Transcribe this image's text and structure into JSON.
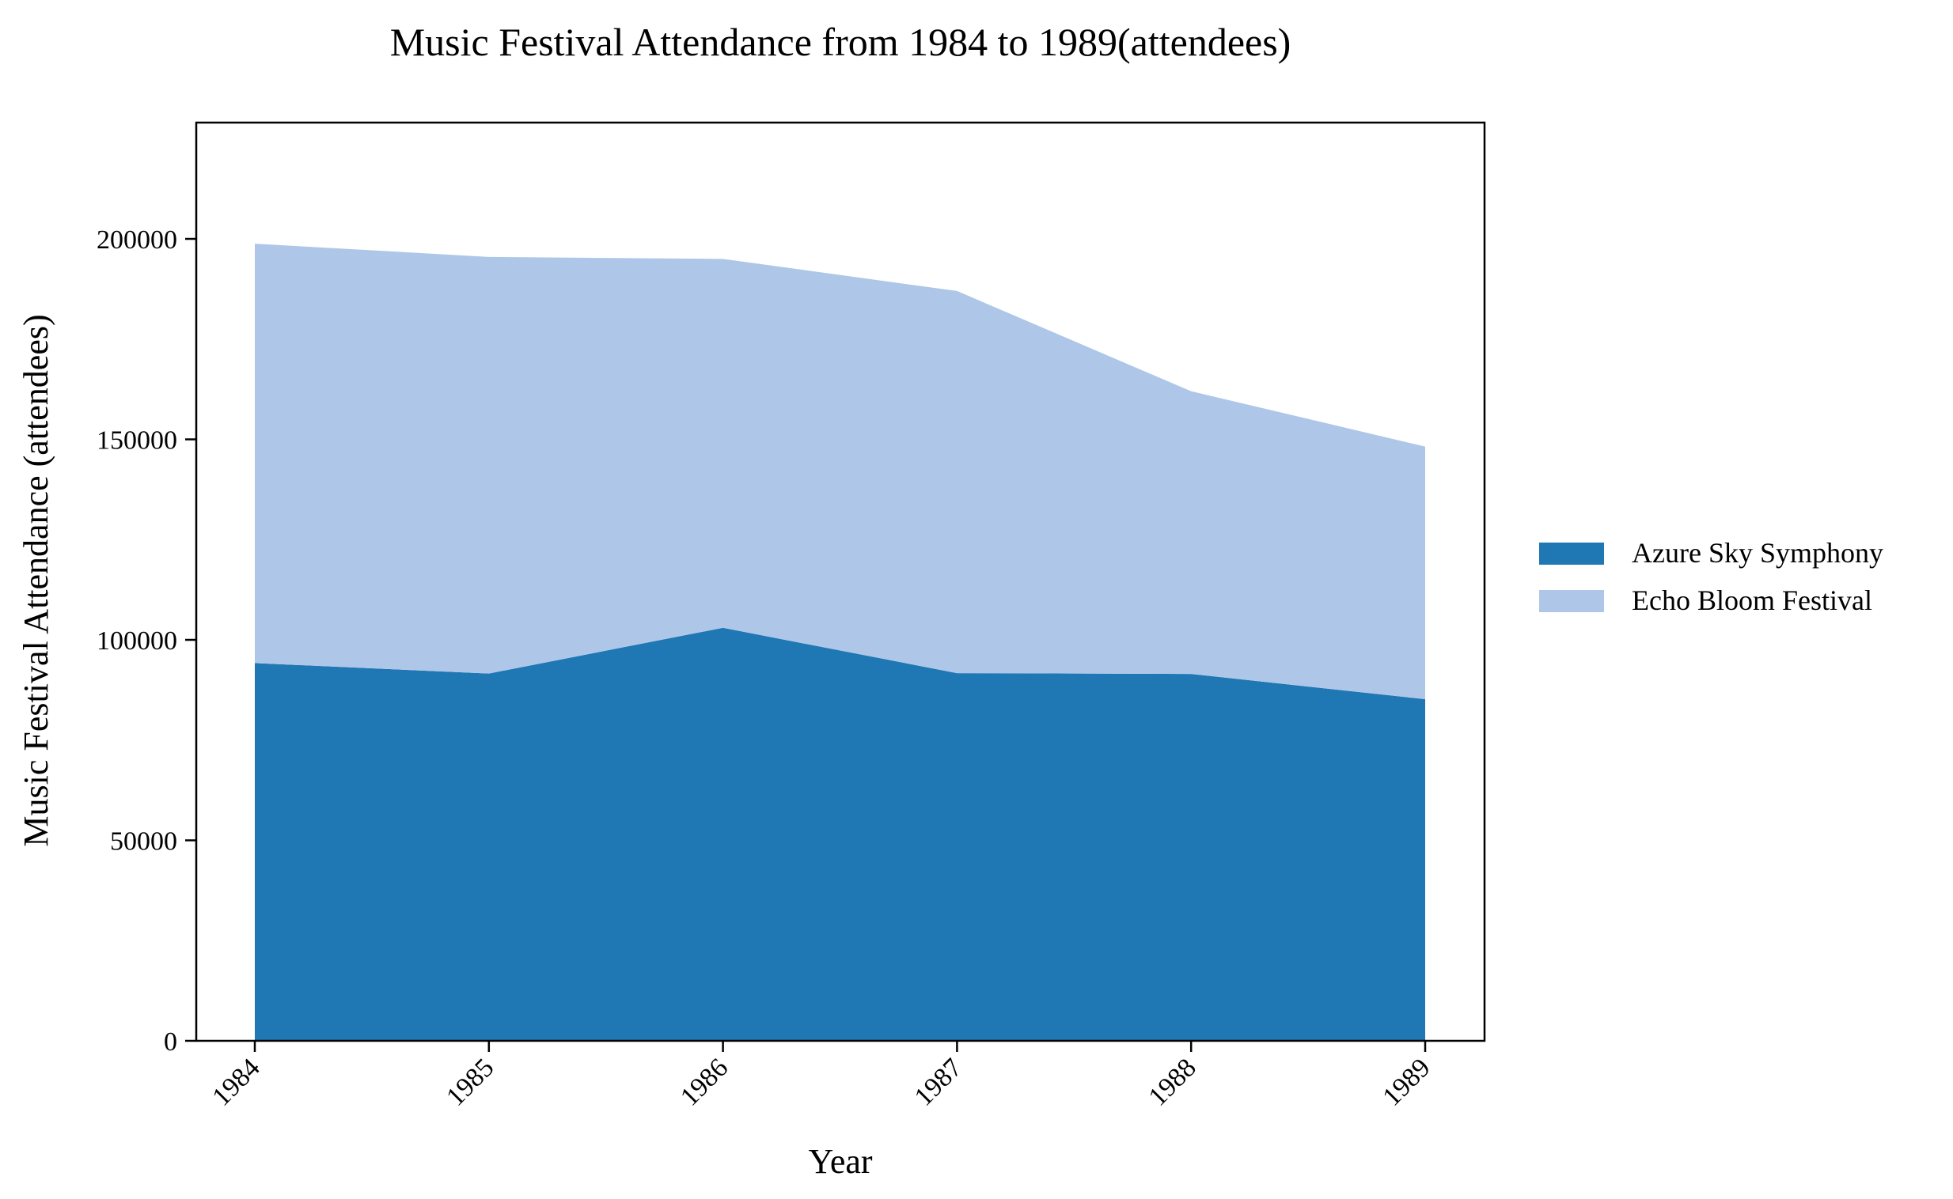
{
  "chart_data": {
    "type": "area",
    "stacked": true,
    "title": "Music Festival Attendance from 1984 to 1989(attendees)",
    "xlabel": "Year",
    "ylabel": "Music Festival Attendance (attendees)",
    "categories": [
      "1984",
      "1985",
      "1986",
      "1987",
      "1988",
      "1989"
    ],
    "ylim": [
      0,
      229000
    ],
    "yticks": [
      0,
      50000,
      100000,
      150000,
      200000
    ],
    "grid": false,
    "legend_position": "right",
    "series": [
      {
        "name": "Azure Sky Symphony",
        "color": "#1f77b4",
        "values": [
          94200,
          91600,
          103000,
          91700,
          91500,
          85200
        ]
      },
      {
        "name": "Echo Bloom Festival",
        "color": "#aec7e8",
        "values": [
          104600,
          103900,
          92000,
          95300,
          70500,
          63000
        ]
      }
    ]
  }
}
